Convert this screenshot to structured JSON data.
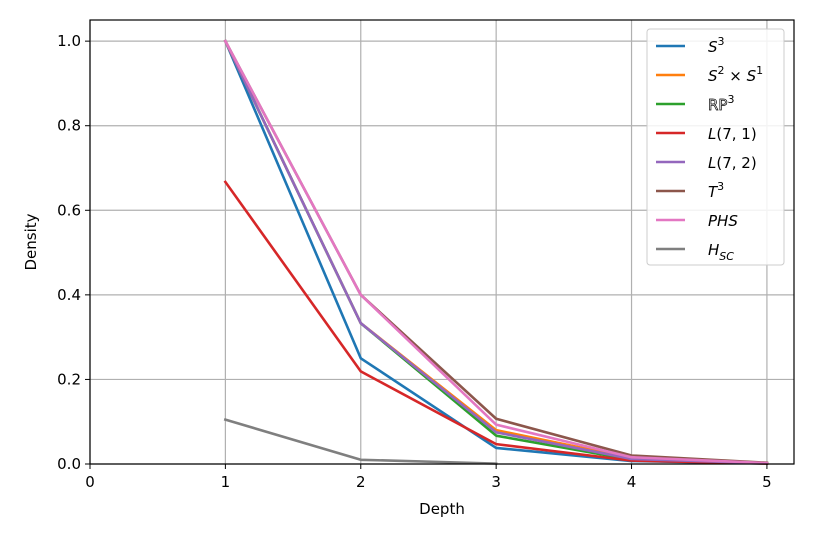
{
  "chart_data": {
    "type": "line",
    "xlabel": "Depth",
    "ylabel": "Density",
    "xlim": [
      0,
      5.2
    ],
    "ylim": [
      0,
      1.05
    ],
    "xticks": [
      0,
      1,
      2,
      3,
      4,
      5
    ],
    "yticks": [
      0.0,
      0.2,
      0.4,
      0.6,
      0.8,
      1.0
    ],
    "xtick_labels": [
      "0",
      "1",
      "2",
      "3",
      "4",
      "5"
    ],
    "ytick_labels": [
      "0.0",
      "0.2",
      "0.4",
      "0.6",
      "0.8",
      "1.0"
    ],
    "grid": true,
    "legend_position": "top-right",
    "series": [
      {
        "name": "S^3",
        "color": "#1f77b4",
        "x": [
          1,
          2,
          3,
          4,
          5
        ],
        "values": [
          1.0,
          0.25,
          0.038,
          0.007,
          0.001
        ]
      },
      {
        "name": "S^2 × S^1",
        "color": "#ff7f0e",
        "x": [
          1,
          2,
          3,
          4,
          5
        ],
        "values": [
          1.0,
          0.333,
          0.08,
          0.014,
          0.002
        ]
      },
      {
        "name": "RP^3",
        "color": "#2ca02c",
        "x": [
          1,
          2,
          3,
          4,
          5
        ],
        "values": [
          1.0,
          0.333,
          0.067,
          0.01,
          0.0015
        ]
      },
      {
        "name": "L(7,1)",
        "color": "#d62728",
        "x": [
          1,
          2,
          3,
          4,
          5
        ],
        "values": [
          0.667,
          0.219,
          0.047,
          0.008,
          0.001
        ]
      },
      {
        "name": "L(7,2)",
        "color": "#9467bd",
        "x": [
          1,
          2,
          3,
          4,
          5
        ],
        "values": [
          1.0,
          0.333,
          0.075,
          0.012,
          0.002
        ]
      },
      {
        "name": "T^3",
        "color": "#8c564b",
        "x": [
          1,
          2,
          3,
          4,
          5
        ],
        "values": [
          1.0,
          0.4,
          0.107,
          0.02,
          0.003
        ]
      },
      {
        "name": "PHS",
        "color": "#e377c2",
        "x": [
          1,
          2,
          3,
          4,
          5
        ],
        "values": [
          1.0,
          0.4,
          0.093,
          0.016,
          0.002
        ]
      },
      {
        "name": "H_SC",
        "color": "#7f7f7f",
        "x": [
          1,
          2,
          3
        ],
        "values": [
          0.105,
          0.01,
          0.001
        ]
      }
    ]
  }
}
